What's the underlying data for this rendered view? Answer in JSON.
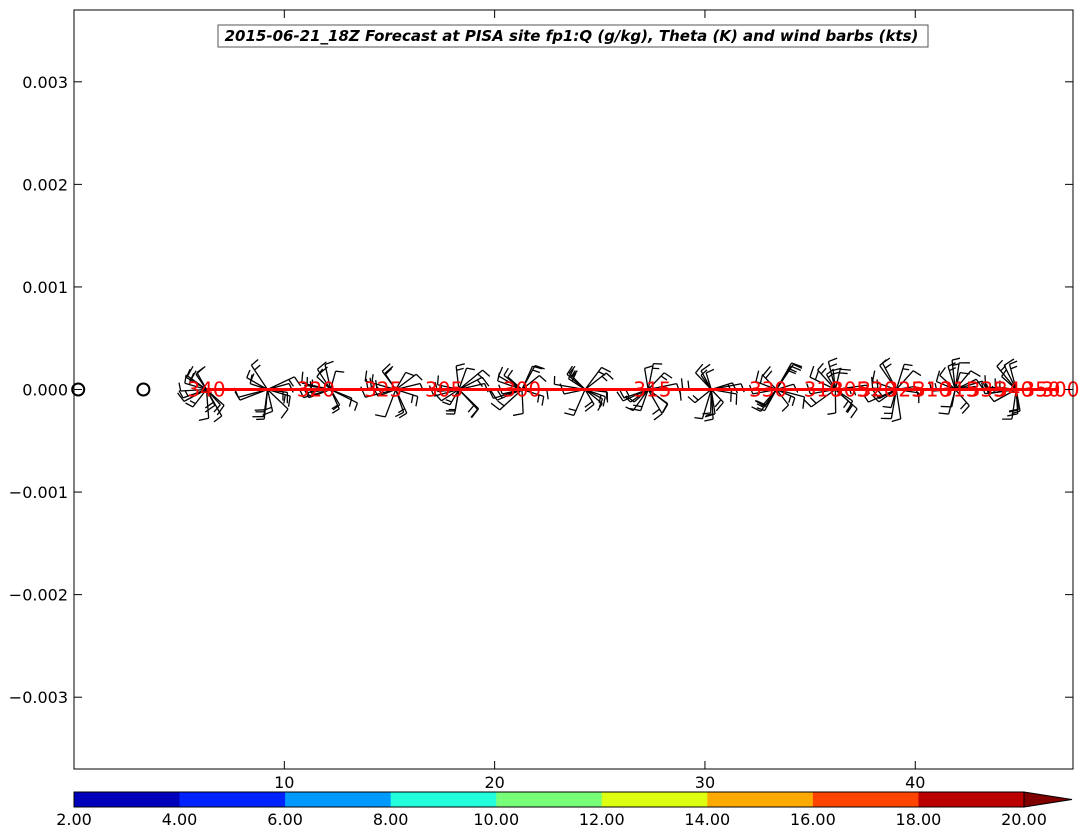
{
  "chart_data": {
    "type": "line",
    "title": "2015-06-21_18Z Forecast at PISA site fp1:Q (g/kg), Theta (K) and wind barbs (kts)",
    "xlabel": "",
    "ylabel": "",
    "xlim": [
      0.0,
      47.5
    ],
    "ylim": [
      -0.0037,
      0.0037
    ],
    "x_ticks": [
      10,
      20,
      30,
      40
    ],
    "x_tick_labels": [
      "10",
      "20",
      "30",
      "40"
    ],
    "y_ticks": [
      0.003,
      0.002,
      0.001,
      0.0,
      -0.001,
      -0.002,
      -0.003
    ],
    "y_tick_labels": [
      "0.003",
      "0.002",
      "0.001",
      "0.000",
      "−0.001",
      "−0.002",
      "−0.003"
    ],
    "grid": false,
    "series": [
      {
        "type": "line",
        "color": "#ff0000",
        "x": [
          6.3,
          46.8
        ],
        "y": [
          0.0,
          0.0
        ]
      }
    ],
    "calm_markers": {
      "x": [
        0.2,
        3.3
      ],
      "y": [
        0.0,
        0.0
      ]
    },
    "barb_columns": {
      "x": [
        6.3,
        9.2,
        12.2,
        15.3,
        18.3,
        21.3,
        24.3,
        27.3,
        30.3,
        33.4,
        36.2,
        39.1,
        41.9,
        44.8
      ],
      "y": 0.0
    },
    "theta_labels": [
      {
        "x": 6.3,
        "y": 0.0,
        "text": "340"
      },
      {
        "x": 11.5,
        "y": 0.0,
        "text": "320"
      },
      {
        "x": 14.7,
        "y": 0.0,
        "text": "325"
      },
      {
        "x": 17.6,
        "y": 0.0,
        "text": "305"
      },
      {
        "x": 21.3,
        "y": 0.0,
        "text": "300"
      },
      {
        "x": 27.5,
        "y": 0.0,
        "text": "315"
      },
      {
        "x": 33.0,
        "y": 0.0,
        "text": "330"
      },
      {
        "x": 35.6,
        "y": 0.0,
        "text": "310"
      },
      {
        "x": 36.9,
        "y": 0.0,
        "text": "305"
      },
      {
        "x": 38.2,
        "y": 0.0,
        "text": "320"
      },
      {
        "x": 39.5,
        "y": 0.0,
        "text": "325"
      },
      {
        "x": 40.8,
        "y": 0.0,
        "text": "310"
      },
      {
        "x": 42.1,
        "y": 0.0,
        "text": "315"
      },
      {
        "x": 43.4,
        "y": 0.0,
        "text": "335"
      },
      {
        "x": 44.7,
        "y": 0.0,
        "text": "340"
      },
      {
        "x": 46.0,
        "y": 0.0,
        "text": "350"
      },
      {
        "x": 46.9,
        "y": 0.0,
        "text": "300"
      }
    ],
    "colorbar": {
      "min": 2.0,
      "max": 20.0,
      "extend": "max",
      "tick_labels": [
        "2.00",
        "4.00",
        "6.00",
        "8.00",
        "10.00",
        "12.00",
        "14.00",
        "16.00",
        "18.00",
        "20.00"
      ],
      "colors": [
        "#0000bb",
        "#0022ff",
        "#0099ff",
        "#22ffdd",
        "#77ff77",
        "#ddff11",
        "#ffaa00",
        "#ff4400",
        "#bb0000"
      ],
      "extend_color": "#800000"
    }
  }
}
